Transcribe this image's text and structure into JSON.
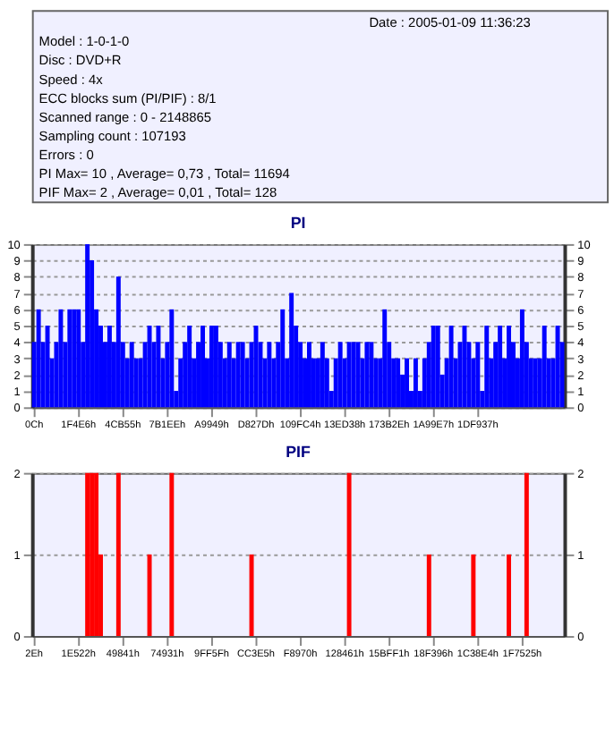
{
  "chart_data": [
    {
      "type": "other",
      "annotations": [
        "Date : 2005-01-09 11:36:23",
        "Model : 1-0-1-0",
        "Disc : DVD+R",
        "Speed : 4x",
        "ECC blocks sum (PI/PIF) : 8/1",
        "Scanned range : 0 - 2148865",
        "Sampling count : 107193",
        "Errors : 0",
        "PI Max= 10 , Average= 0,73 , Total= 11694",
        "PIF Max= 2 , Average= 0,01 , Total= 128"
      ]
    },
    {
      "type": "bar",
      "title": "PI",
      "categories": [
        "0Ch",
        null,
        null,
        null,
        null,
        null,
        null,
        null,
        null,
        null,
        "1F4E6h",
        null,
        null,
        null,
        null,
        null,
        null,
        null,
        null,
        null,
        "4CB55h",
        null,
        null,
        null,
        null,
        null,
        null,
        null,
        null,
        null,
        "7B1EEh",
        null,
        null,
        null,
        null,
        null,
        null,
        null,
        null,
        null,
        "A9949h",
        null,
        null,
        null,
        null,
        null,
        null,
        null,
        null,
        null,
        "D827Dh",
        null,
        null,
        null,
        null,
        null,
        null,
        null,
        null,
        null,
        "109FC4h",
        null,
        null,
        null,
        null,
        null,
        null,
        null,
        null,
        null,
        "13ED38h",
        null,
        null,
        null,
        null,
        null,
        null,
        null,
        null,
        null,
        "173B2Eh",
        null,
        null,
        null,
        null,
        null,
        null,
        null,
        null,
        null,
        "1A99E7h",
        null,
        null,
        null,
        null,
        null,
        null,
        null,
        null,
        null,
        "1DF937h",
        null,
        null,
        null,
        null,
        null,
        null,
        null,
        null,
        null,
        null,
        null,
        null,
        null,
        null,
        null,
        null,
        null,
        null,
        null
      ],
      "series": [
        {
          "color": "#0000ff",
          "values": [
            4,
            6,
            4,
            5,
            3,
            4,
            6,
            4,
            6,
            6,
            6,
            4,
            10,
            9,
            6,
            5,
            4,
            5,
            4,
            8,
            4,
            3,
            4,
            3,
            3,
            4,
            5,
            4,
            5,
            3,
            4,
            6,
            1,
            3,
            4,
            5,
            3,
            4,
            5,
            3,
            5,
            5,
            4,
            3,
            4,
            3,
            4,
            4,
            3,
            4,
            5,
            4,
            3,
            4,
            3,
            4,
            6,
            3,
            7,
            5,
            4,
            3,
            4,
            3,
            3,
            4,
            3,
            1,
            3,
            4,
            3,
            4,
            4,
            4,
            3,
            4,
            4,
            3,
            3,
            6,
            4,
            3,
            3,
            2,
            3,
            1,
            3,
            1,
            3,
            4,
            5,
            5,
            2,
            3,
            5,
            3,
            4,
            5,
            4,
            3,
            4,
            1,
            5,
            3,
            4,
            5,
            3,
            5,
            4,
            3,
            6,
            4,
            3,
            3,
            3,
            5,
            3,
            3,
            5,
            4
          ]
        }
      ],
      "ylim": [
        0,
        10
      ],
      "yticks": [
        0,
        1,
        2,
        3,
        4,
        5,
        6,
        7,
        8,
        9,
        10
      ],
      "y2lim": [
        0,
        10
      ],
      "y2ticks": [
        0,
        1,
        2,
        3,
        4,
        5,
        6,
        7,
        8,
        9,
        10
      ],
      "grid": "y"
    },
    {
      "type": "bar",
      "title": "PIF",
      "categories": [
        "2Eh",
        null,
        null,
        null,
        null,
        null,
        null,
        null,
        null,
        null,
        "1E522h",
        null,
        null,
        null,
        null,
        null,
        null,
        null,
        null,
        null,
        "49841h",
        null,
        null,
        null,
        null,
        null,
        null,
        null,
        null,
        null,
        "74931h",
        null,
        null,
        null,
        null,
        null,
        null,
        null,
        null,
        null,
        "9FF5Fh",
        null,
        null,
        null,
        null,
        null,
        null,
        null,
        null,
        null,
        "CC3E5h",
        null,
        null,
        null,
        null,
        null,
        null,
        null,
        null,
        null,
        "F8970h",
        null,
        null,
        null,
        null,
        null,
        null,
        null,
        null,
        null,
        "128461h",
        null,
        null,
        null,
        null,
        null,
        null,
        null,
        null,
        null,
        "15BFF1h",
        null,
        null,
        null,
        null,
        null,
        null,
        null,
        null,
        null,
        "18F396h",
        null,
        null,
        null,
        null,
        null,
        null,
        null,
        null,
        null,
        "1C38E4h",
        null,
        null,
        null,
        null,
        null,
        null,
        null,
        null,
        null,
        "1F7525h",
        null,
        null,
        null,
        null,
        null,
        null,
        null,
        null,
        null
      ],
      "series": [
        {
          "color": "#ff0000",
          "values": [
            0,
            0,
            0,
            0,
            0,
            0,
            0,
            0,
            0,
            0,
            0,
            0,
            2,
            2,
            2,
            1,
            0,
            0,
            0,
            2,
            0,
            0,
            0,
            0,
            0,
            0,
            1,
            0,
            0,
            0,
            0,
            2,
            0,
            0,
            0,
            0,
            0,
            0,
            0,
            0,
            0,
            0,
            0,
            0,
            0,
            0,
            0,
            0,
            0,
            1,
            0,
            0,
            0,
            0,
            0,
            0,
            0,
            0,
            0,
            0,
            0,
            0,
            0,
            0,
            0,
            0,
            0,
            0,
            0,
            0,
            0,
            2,
            0,
            0,
            0,
            0,
            0,
            0,
            0,
            0,
            0,
            0,
            0,
            0,
            0,
            0,
            0,
            0,
            0,
            1,
            0,
            0,
            0,
            0,
            0,
            0,
            0,
            0,
            0,
            1,
            0,
            0,
            0,
            0,
            0,
            0,
            0,
            1,
            0,
            0,
            0,
            2,
            0,
            0,
            0,
            0,
            0,
            0,
            0,
            0
          ]
        }
      ],
      "ylim": [
        0,
        2
      ],
      "yticks": [
        0,
        1,
        2
      ],
      "y2lim": [
        0,
        2
      ],
      "y2ticks": [
        0,
        1,
        2
      ],
      "grid": "y"
    }
  ]
}
